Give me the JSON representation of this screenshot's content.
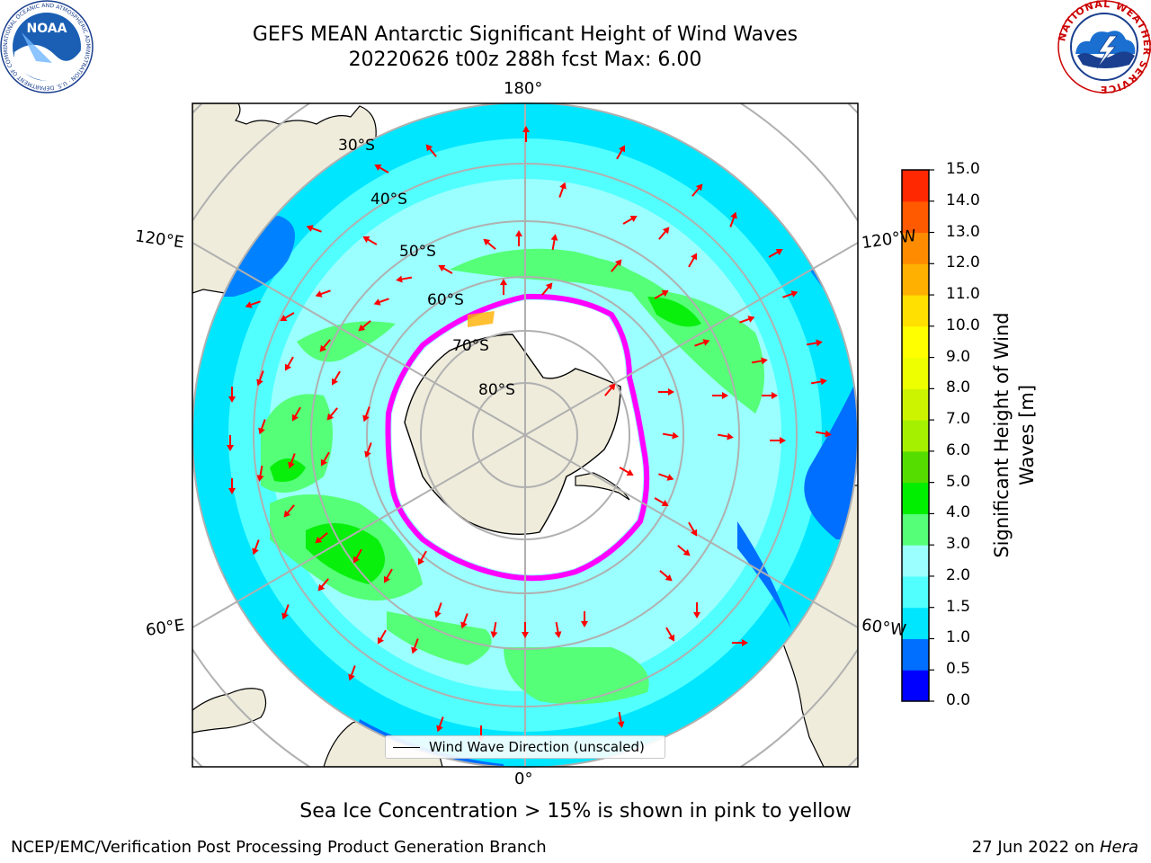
{
  "header": {
    "title_line1": "GEFS MEAN Antarctic Significant Height of Wind Waves",
    "title_line2": "20220626 t00z 288h fcst   Max: 6.00"
  },
  "logos": {
    "left": "noaa-logo-icon",
    "right": "national-weather-service-logo-icon",
    "left_text": "NOAA",
    "left_ring_text": "NATIONAL OCEANIC AND ATMOSPHERIC ADMINISTRATION · U.S. DEPARTMENT OF COMMERCE",
    "right_ring_text": "NATIONAL WEATHER SERVICE"
  },
  "map": {
    "projection": "south-polar-stereographic",
    "longitude_labels": {
      "top": "180°",
      "bottom": "0°",
      "upper_left": "120°E",
      "upper_right": "120°W",
      "lower_left": "60°E",
      "lower_right": "60°W"
    },
    "latitude_labels": [
      "30°S",
      "40°S",
      "50°S",
      "60°S",
      "70°S",
      "80°S"
    ],
    "legend": {
      "label": "Wind Wave Direction (unscaled)",
      "line_color": "#000000"
    },
    "arrow_color": "#ff0000",
    "land_color": "#efecdc",
    "sea_ice_colors": [
      "#ff00ff",
      "#ffb000"
    ]
  },
  "colorbar": {
    "label": "Significant Height of Wind Waves [m]",
    "label_line1": "Significant Height of Wind",
    "label_line2": "Waves [m]",
    "ticks": [
      "0.0",
      "0.5",
      "1.0",
      "1.5",
      "2.0",
      "3.0",
      "4.0",
      "5.0",
      "6.0",
      "7.0",
      "8.0",
      "9.0",
      "10.0",
      "11.0",
      "12.0",
      "13.0",
      "14.0",
      "15.0"
    ],
    "colors": [
      "#0000ff",
      "#006eff",
      "#00e6ff",
      "#52ffff",
      "#9bffff",
      "#55ff77",
      "#00ee00",
      "#55dd00",
      "#a5f000",
      "#ccf400",
      "#eeff00",
      "#ffff00",
      "#ffe000",
      "#ffb000",
      "#ff8c00",
      "#ff5a00",
      "#ff2800"
    ]
  },
  "caption": "Sea Ice Concentration > 15% is shown in pink to yellow",
  "footer": {
    "left": "NCEP/EMC/Verification Post Processing Product Generation Branch",
    "right_prefix": "27 Jun 2022 on ",
    "right_italic": "Hera"
  }
}
